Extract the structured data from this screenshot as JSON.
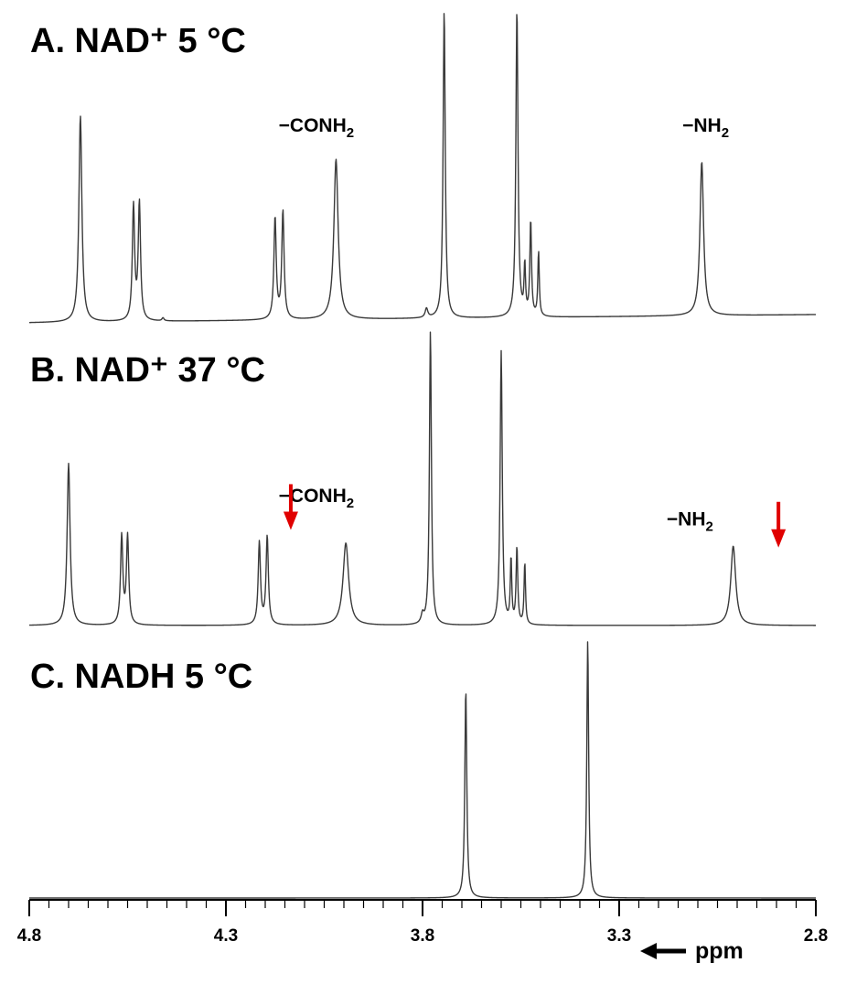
{
  "chart_data": {
    "type": "line",
    "xlabel": "ppm",
    "xlim": [
      4.8,
      2.8
    ],
    "x_reversed": true,
    "x_ticks": [
      "4.8",
      "4.3",
      "3.8",
      "3.3",
      "2.8"
    ],
    "x_tick_values": [
      4.8,
      4.3,
      3.8,
      3.3,
      2.8
    ],
    "colors": {
      "trace": "#3a3a3a",
      "arrow": "#e00000",
      "text": "#000000"
    },
    "panels": [
      {
        "title": "A. NAD⁺ 5 °C",
        "peaks": [
          {
            "ppm": 4.67,
            "height": 0.67,
            "width": 0.0045
          },
          {
            "ppm": 4.535,
            "height": 0.37,
            "width": 0.0035
          },
          {
            "ppm": 4.52,
            "height": 0.38,
            "width": 0.0035
          },
          {
            "ppm": 4.46,
            "height": 0.01,
            "width": 0.003
          },
          {
            "ppm": 4.175,
            "height": 0.33,
            "width": 0.0035
          },
          {
            "ppm": 4.155,
            "height": 0.35,
            "width": 0.0035
          },
          {
            "ppm": 4.02,
            "height": 0.52,
            "width": 0.0065
          },
          {
            "ppm": 3.79,
            "height": 0.03,
            "width": 0.004
          },
          {
            "ppm": 3.745,
            "height": 1.0,
            "width": 0.0032
          },
          {
            "ppm": 3.56,
            "height": 1.0,
            "width": 0.0032
          },
          {
            "ppm": 3.54,
            "height": 0.16,
            "width": 0.0022
          },
          {
            "ppm": 3.525,
            "height": 0.31,
            "width": 0.0025
          },
          {
            "ppm": 3.505,
            "height": 0.21,
            "width": 0.0022
          },
          {
            "ppm": 3.09,
            "height": 0.5,
            "width": 0.0055
          }
        ],
        "annotations": [
          {
            "text": "−CONH",
            "sub": "2",
            "ppm": 4.07,
            "height": 0.62
          },
          {
            "text": "−NH",
            "sub": "2",
            "ppm": 3.08,
            "height": 0.62
          }
        ],
        "markers": []
      },
      {
        "title": "B. NAD⁺ 37 °C",
        "peaks": [
          {
            "ppm": 4.7,
            "height": 0.55,
            "width": 0.0045
          },
          {
            "ppm": 4.565,
            "height": 0.3,
            "width": 0.0035
          },
          {
            "ppm": 4.55,
            "height": 0.3,
            "width": 0.0035
          },
          {
            "ppm": 4.215,
            "height": 0.28,
            "width": 0.0035
          },
          {
            "ppm": 4.195,
            "height": 0.3,
            "width": 0.0035
          },
          {
            "ppm": 3.995,
            "height": 0.28,
            "width": 0.0085
          },
          {
            "ppm": 3.8,
            "height": 0.03,
            "width": 0.004
          },
          {
            "ppm": 3.78,
            "height": 1.0,
            "width": 0.003
          },
          {
            "ppm": 3.6,
            "height": 0.93,
            "width": 0.0032
          },
          {
            "ppm": 3.575,
            "height": 0.22,
            "width": 0.0022
          },
          {
            "ppm": 3.56,
            "height": 0.26,
            "width": 0.0025
          },
          {
            "ppm": 3.54,
            "height": 0.21,
            "width": 0.0022
          },
          {
            "ppm": 3.01,
            "height": 0.27,
            "width": 0.0075
          }
        ],
        "annotations": [
          {
            "text": "−CONH",
            "sub": "2",
            "ppm": 4.07,
            "height": 0.42
          },
          {
            "text": "−NH",
            "sub": "2",
            "ppm": 3.12,
            "height": 0.34
          }
        ],
        "markers": [
          {
            "ppm": 4.135,
            "height": 0.48
          },
          {
            "ppm": 2.895,
            "height": 0.42
          }
        ]
      },
      {
        "title": "C. NADH 5 °C",
        "peaks": [
          {
            "ppm": 3.69,
            "height": 0.81,
            "width": 0.003
          },
          {
            "ppm": 3.38,
            "height": 1.0,
            "width": 0.0028
          }
        ],
        "annotations": [],
        "markers": []
      }
    ]
  }
}
